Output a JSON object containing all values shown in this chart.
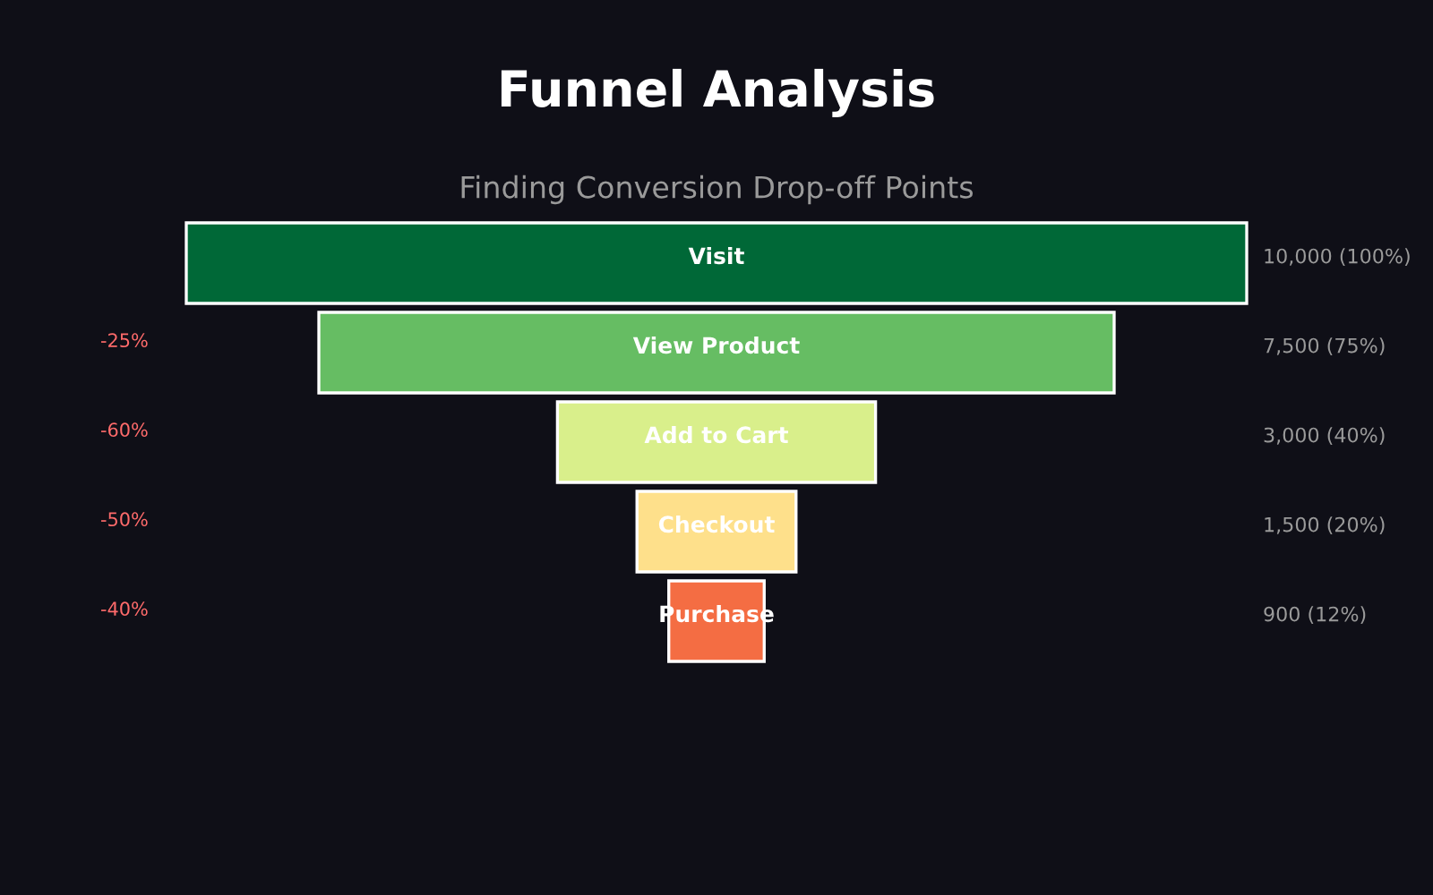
{
  "chart_data": {
    "type": "other",
    "title": "Funnel Analysis",
    "subtitle": "Finding Conversion Drop-off Points",
    "categories": [
      "Visit",
      "View Product",
      "Add to Cart",
      "Checkout",
      "Purchase"
    ],
    "values": [
      10000,
      7500,
      3000,
      1500,
      900
    ],
    "colors": [
      "#006837",
      "#66bd63",
      "#d9ef8b",
      "#fee08b",
      "#f46d43"
    ],
    "value_labels": [
      "10,000 (100%)",
      "7,500 (75%)",
      "3,000 (40%)",
      "1,500 (20%)",
      "900 (12%)"
    ],
    "annotations": [
      "-25%",
      "-60%",
      "-50%",
      "-40%"
    ]
  }
}
